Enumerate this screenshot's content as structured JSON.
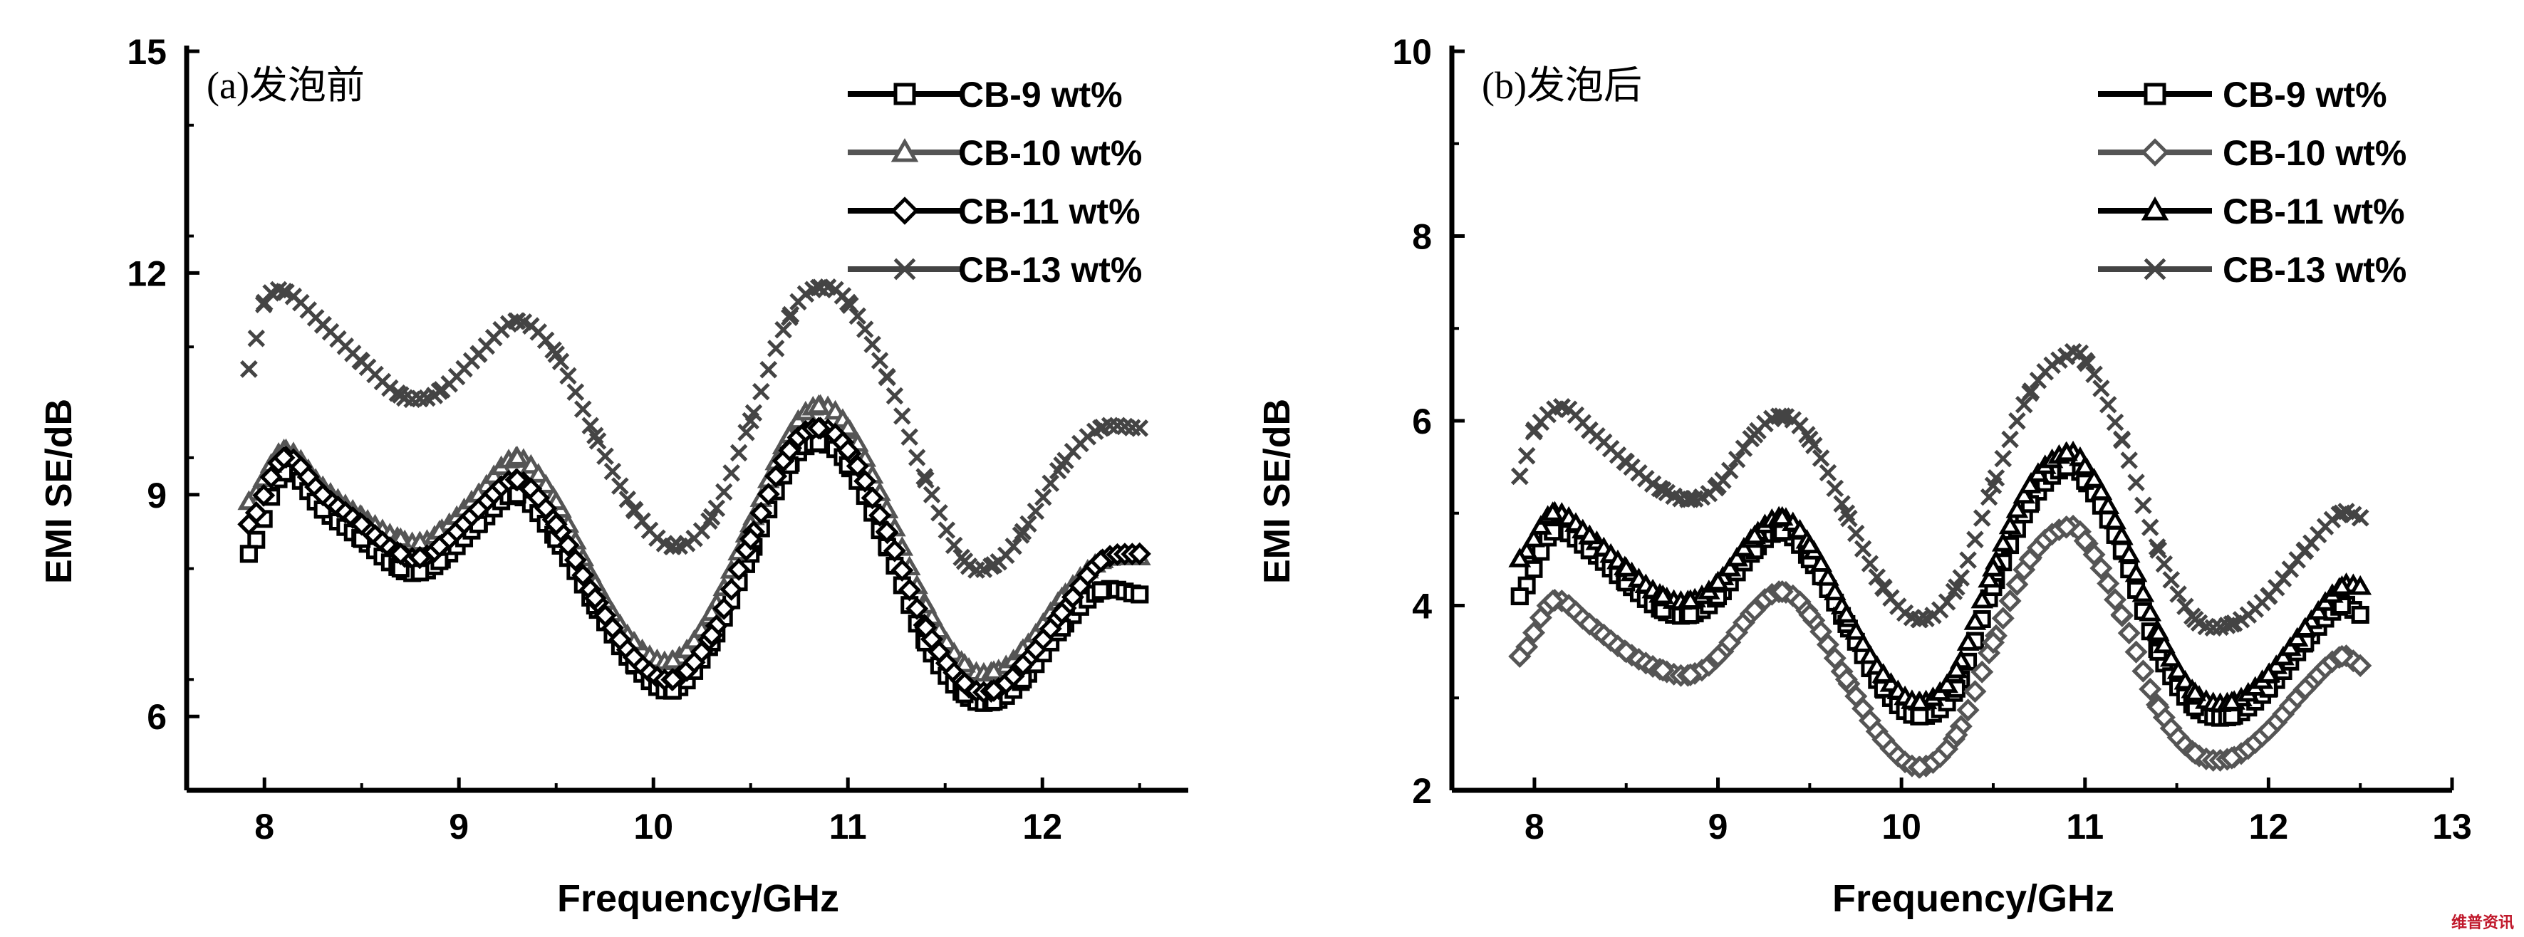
{
  "chart_data": [
    {
      "type": "line",
      "panel_label": "(a)发泡前",
      "xlabel": "Frequency/GHz",
      "ylabel": "EMI SE/dB",
      "xlim": [
        7.6,
        12.75
      ],
      "ylim": [
        5,
        15
      ],
      "xticks": [
        8,
        9,
        10,
        11,
        12
      ],
      "yticks": [
        6,
        9,
        12,
        15
      ],
      "grid": false,
      "legend_position": "top-right",
      "series": [
        {
          "name": "CB-9 wt%",
          "marker": "square",
          "color": "#000000",
          "x": [
            7.92,
            8.1,
            8.3,
            8.5,
            8.7,
            8.8,
            8.9,
            9.1,
            9.3,
            9.5,
            9.7,
            9.9,
            10.1,
            10.3,
            10.5,
            10.7,
            10.85,
            11.0,
            11.2,
            11.4,
            11.6,
            11.75,
            11.9,
            12.1,
            12.3,
            12.5
          ],
          "y": [
            8.2,
            9.3,
            8.8,
            8.4,
            8.0,
            7.95,
            8.1,
            8.6,
            9.0,
            8.4,
            7.5,
            6.7,
            6.35,
            7.0,
            8.2,
            9.4,
            9.7,
            9.4,
            8.3,
            7.0,
            6.3,
            6.2,
            6.5,
            7.2,
            7.7,
            7.65
          ]
        },
        {
          "name": "CB-10 wt%",
          "marker": "triangle",
          "color": "#555555",
          "x": [
            7.92,
            8.1,
            8.3,
            8.5,
            8.7,
            8.8,
            8.9,
            9.1,
            9.3,
            9.5,
            9.7,
            9.9,
            10.1,
            10.3,
            10.5,
            10.7,
            10.85,
            11.0,
            11.2,
            11.4,
            11.6,
            11.75,
            11.9,
            12.1,
            12.3,
            12.5
          ],
          "y": [
            8.9,
            9.6,
            9.1,
            8.7,
            8.4,
            8.35,
            8.5,
            9.0,
            9.5,
            8.9,
            7.8,
            7.0,
            6.75,
            7.4,
            8.6,
            9.8,
            10.2,
            9.9,
            8.8,
            7.5,
            6.7,
            6.6,
            6.9,
            7.6,
            8.1,
            8.15
          ]
        },
        {
          "name": "CB-11 wt%",
          "marker": "diamond",
          "color": "#000000",
          "x": [
            7.92,
            8.1,
            8.3,
            8.5,
            8.7,
            8.8,
            8.9,
            9.1,
            9.3,
            9.5,
            9.7,
            9.9,
            10.1,
            10.3,
            10.5,
            10.7,
            10.85,
            11.0,
            11.2,
            11.4,
            11.6,
            11.75,
            11.9,
            12.1,
            12.3,
            12.5
          ],
          "y": [
            8.6,
            9.5,
            9.0,
            8.6,
            8.2,
            8.15,
            8.3,
            8.8,
            9.2,
            8.6,
            7.6,
            6.8,
            6.5,
            7.1,
            8.4,
            9.6,
            9.9,
            9.6,
            8.5,
            7.2,
            6.45,
            6.35,
            6.7,
            7.4,
            8.1,
            8.2
          ]
        },
        {
          "name": "CB-13 wt%",
          "marker": "x",
          "color": "#444444",
          "x": [
            7.92,
            8.0,
            8.1,
            8.3,
            8.5,
            8.7,
            8.8,
            8.9,
            9.1,
            9.3,
            9.5,
            9.7,
            9.9,
            10.1,
            10.3,
            10.5,
            10.7,
            10.85,
            11.0,
            11.2,
            11.4,
            11.6,
            11.75,
            11.9,
            12.1,
            12.3,
            12.5
          ],
          "y": [
            10.7,
            11.6,
            11.75,
            11.3,
            10.8,
            10.35,
            10.3,
            10.4,
            10.9,
            11.35,
            10.9,
            9.8,
            8.8,
            8.3,
            8.7,
            10.0,
            11.4,
            11.8,
            11.6,
            10.6,
            9.2,
            8.1,
            8.05,
            8.5,
            9.4,
            9.9,
            9.9
          ]
        }
      ]
    },
    {
      "type": "line",
      "panel_label": "(b)发泡后",
      "xlabel": "Frequency/GHz",
      "ylabel": "EMI SE/dB",
      "xlim": [
        7.55,
        13.0
      ],
      "ylim": [
        2,
        10
      ],
      "xticks": [
        8,
        9,
        10,
        11,
        12,
        13
      ],
      "yticks": [
        2,
        4,
        6,
        8,
        10
      ],
      "grid": false,
      "legend_position": "top-right",
      "series": [
        {
          "name": "CB-9 wt%",
          "marker": "square",
          "color": "#000000",
          "x": [
            7.92,
            8.1,
            8.3,
            8.5,
            8.7,
            8.85,
            9.0,
            9.2,
            9.35,
            9.5,
            9.7,
            9.9,
            10.1,
            10.3,
            10.5,
            10.7,
            10.9,
            11.0,
            11.2,
            11.4,
            11.6,
            11.8,
            12.0,
            12.2,
            12.4,
            12.5
          ],
          "y": [
            4.1,
            4.8,
            4.6,
            4.25,
            3.95,
            3.9,
            4.1,
            4.6,
            4.8,
            4.5,
            3.8,
            3.1,
            2.8,
            3.1,
            4.2,
            5.1,
            5.5,
            5.35,
            4.6,
            3.5,
            2.9,
            2.8,
            3.1,
            3.6,
            4.0,
            3.9
          ]
        },
        {
          "name": "CB-10 wt%",
          "marker": "diamond",
          "color": "#555555",
          "x": [
            7.92,
            8.1,
            8.3,
            8.5,
            8.7,
            8.85,
            9.0,
            9.2,
            9.35,
            9.5,
            9.7,
            9.9,
            10.1,
            10.3,
            10.5,
            10.7,
            10.9,
            11.0,
            11.2,
            11.4,
            11.6,
            11.8,
            12.0,
            12.2,
            12.4,
            12.5
          ],
          "y": [
            3.45,
            4.05,
            3.8,
            3.5,
            3.3,
            3.25,
            3.45,
            3.95,
            4.15,
            3.9,
            3.2,
            2.55,
            2.25,
            2.6,
            3.6,
            4.5,
            4.85,
            4.7,
            3.9,
            2.9,
            2.4,
            2.35,
            2.65,
            3.1,
            3.45,
            3.35
          ]
        },
        {
          "name": "CB-11 wt%",
          "marker": "triangle",
          "color": "#000000",
          "x": [
            7.92,
            8.1,
            8.3,
            8.5,
            8.7,
            8.85,
            9.0,
            9.2,
            9.35,
            9.5,
            9.7,
            9.9,
            10.1,
            10.3,
            10.5,
            10.7,
            10.9,
            11.0,
            11.2,
            11.4,
            11.6,
            11.8,
            12.0,
            12.2,
            12.4,
            12.5
          ],
          "y": [
            4.5,
            5.0,
            4.75,
            4.4,
            4.1,
            4.05,
            4.25,
            4.75,
            4.95,
            4.65,
            3.9,
            3.25,
            2.95,
            3.3,
            4.4,
            5.3,
            5.65,
            5.5,
            4.75,
            3.7,
            3.05,
            2.95,
            3.25,
            3.75,
            4.2,
            4.2
          ]
        },
        {
          "name": "CB-13 wt%",
          "marker": "x",
          "color": "#444444",
          "x": [
            7.92,
            8.0,
            8.15,
            8.3,
            8.5,
            8.7,
            8.85,
            9.0,
            9.2,
            9.35,
            9.5,
            9.7,
            9.9,
            10.1,
            10.3,
            10.5,
            10.7,
            10.9,
            11.0,
            11.2,
            11.4,
            11.6,
            11.8,
            12.0,
            12.2,
            12.4,
            12.5
          ],
          "y": [
            5.4,
            5.9,
            6.15,
            5.9,
            5.55,
            5.25,
            5.15,
            5.3,
            5.85,
            6.05,
            5.8,
            5.0,
            4.2,
            3.85,
            4.2,
            5.3,
            6.3,
            6.7,
            6.65,
            5.8,
            4.6,
            3.85,
            3.8,
            4.1,
            4.6,
            5.0,
            4.95
          ]
        }
      ]
    }
  ],
  "watermark_text": "维普资讯"
}
